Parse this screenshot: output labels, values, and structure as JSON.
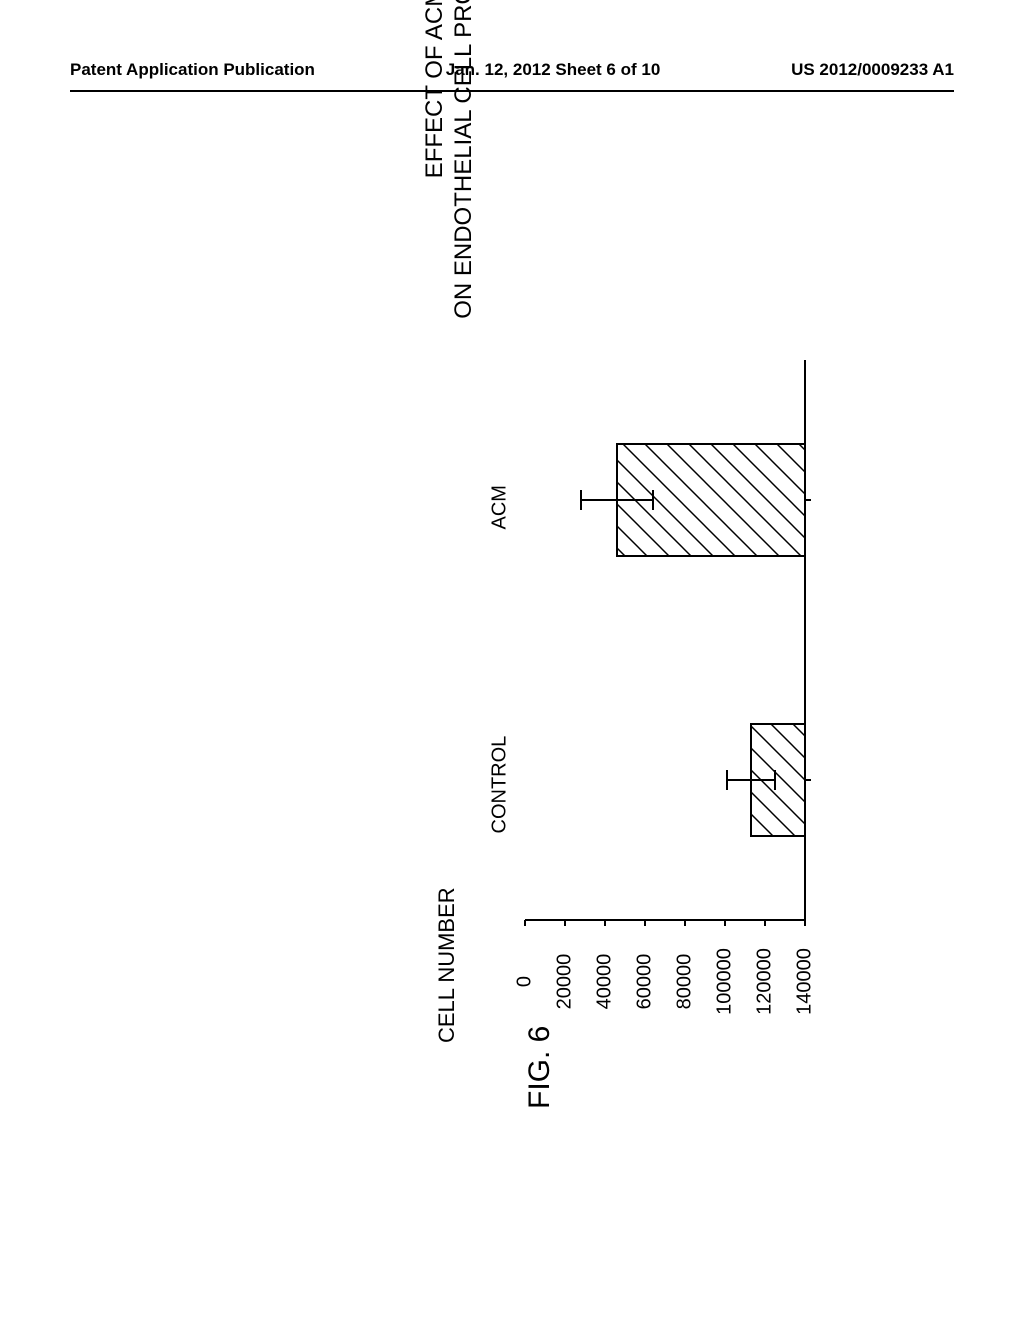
{
  "header": {
    "left": "Patent Application Publication",
    "center": "Jan. 12, 2012  Sheet 6 of 10",
    "right": "US 2012/0009233 A1"
  },
  "chart": {
    "type": "bar",
    "title_line1": "EFFECT OF ACM",
    "title_line2": "ON ENDOTHELIAL CELL PROLIFERATION",
    "y_axis_label": "CELL NUMBER",
    "y_min": 0,
    "y_max": 140000,
    "y_ticks": [
      0,
      20000,
      40000,
      60000,
      80000,
      100000,
      120000,
      140000
    ],
    "categories": [
      "CONTROL",
      "ACM"
    ],
    "values": [
      27000,
      94000
    ],
    "error_bars": [
      12000,
      18000
    ],
    "bar_fill": "#ffffff",
    "bar_stroke": "#000000",
    "bar_stroke_width": 2,
    "hatch_pattern": "diagonal",
    "hatch_color": "#000000",
    "background_color": "#ffffff",
    "axis_color": "#000000",
    "text_color": "#000000",
    "title_fontsize": 24,
    "label_fontsize": 22,
    "tick_fontsize": 20,
    "bar_width_ratio": 0.4
  },
  "figure_label": "FIG. 6"
}
